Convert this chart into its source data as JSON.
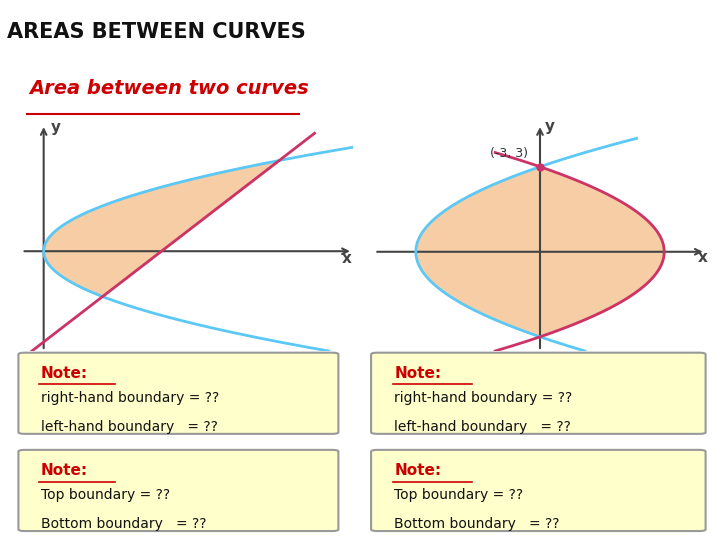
{
  "title": "AREAS BETWEEN CURVES",
  "subtitle": "Area between two curves",
  "title_bg": "#a8d4f0",
  "subtitle_color": "#cc0000",
  "background": "#ffffff",
  "note_bg": "#ffffcc",
  "note_border": "#999999",
  "fill_color": "#f5c89a",
  "curve1_color": "#5bc8f5",
  "curve2_color": "#cc3366",
  "axis_color": "#444444",
  "note_title_color": "#cc0000",
  "note_text_color": "#111111",
  "notes": [
    {
      "title": "Note:",
      "lines": [
        "right-hand boundary = ??",
        "left-hand boundary   = ??"
      ]
    },
    {
      "title": "Note:",
      "lines": [
        "Top boundary = ??",
        "Bottom boundary   = ??"
      ]
    },
    {
      "title": "Note:",
      "lines": [
        "right-hand boundary = ??",
        "left-hand boundary   = ??"
      ]
    },
    {
      "title": "Note:",
      "lines": [
        "Top boundary = ??",
        "Bottom boundary   = ??"
      ]
    }
  ]
}
